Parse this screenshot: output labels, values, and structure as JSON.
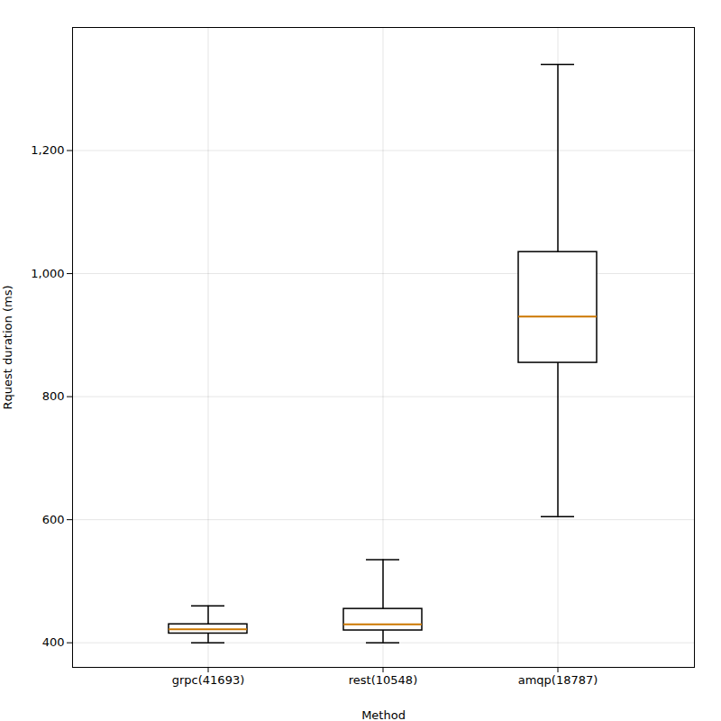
{
  "chart_data": {
    "type": "box",
    "categories": [
      "grpc(41693)",
      "rest(10548)",
      "amqp(18787)"
    ],
    "boxes": [
      {
        "whisker_low": 400,
        "q1": 415,
        "median": 422,
        "q3": 430,
        "whisker_high": 460
      },
      {
        "whisker_low": 400,
        "q1": 420,
        "median": 430,
        "q3": 455,
        "whisker_high": 535
      },
      {
        "whisker_low": 605,
        "q1": 855,
        "median": 930,
        "q3": 1035,
        "whisker_high": 1340
      }
    ],
    "xlabel": "Method",
    "ylabel": "Rquest duration (ms)",
    "ylim": [
      360,
      1400
    ],
    "yticks": [
      400,
      600,
      800,
      1000,
      1200
    ],
    "color": "#cc7700",
    "grid": true
  }
}
